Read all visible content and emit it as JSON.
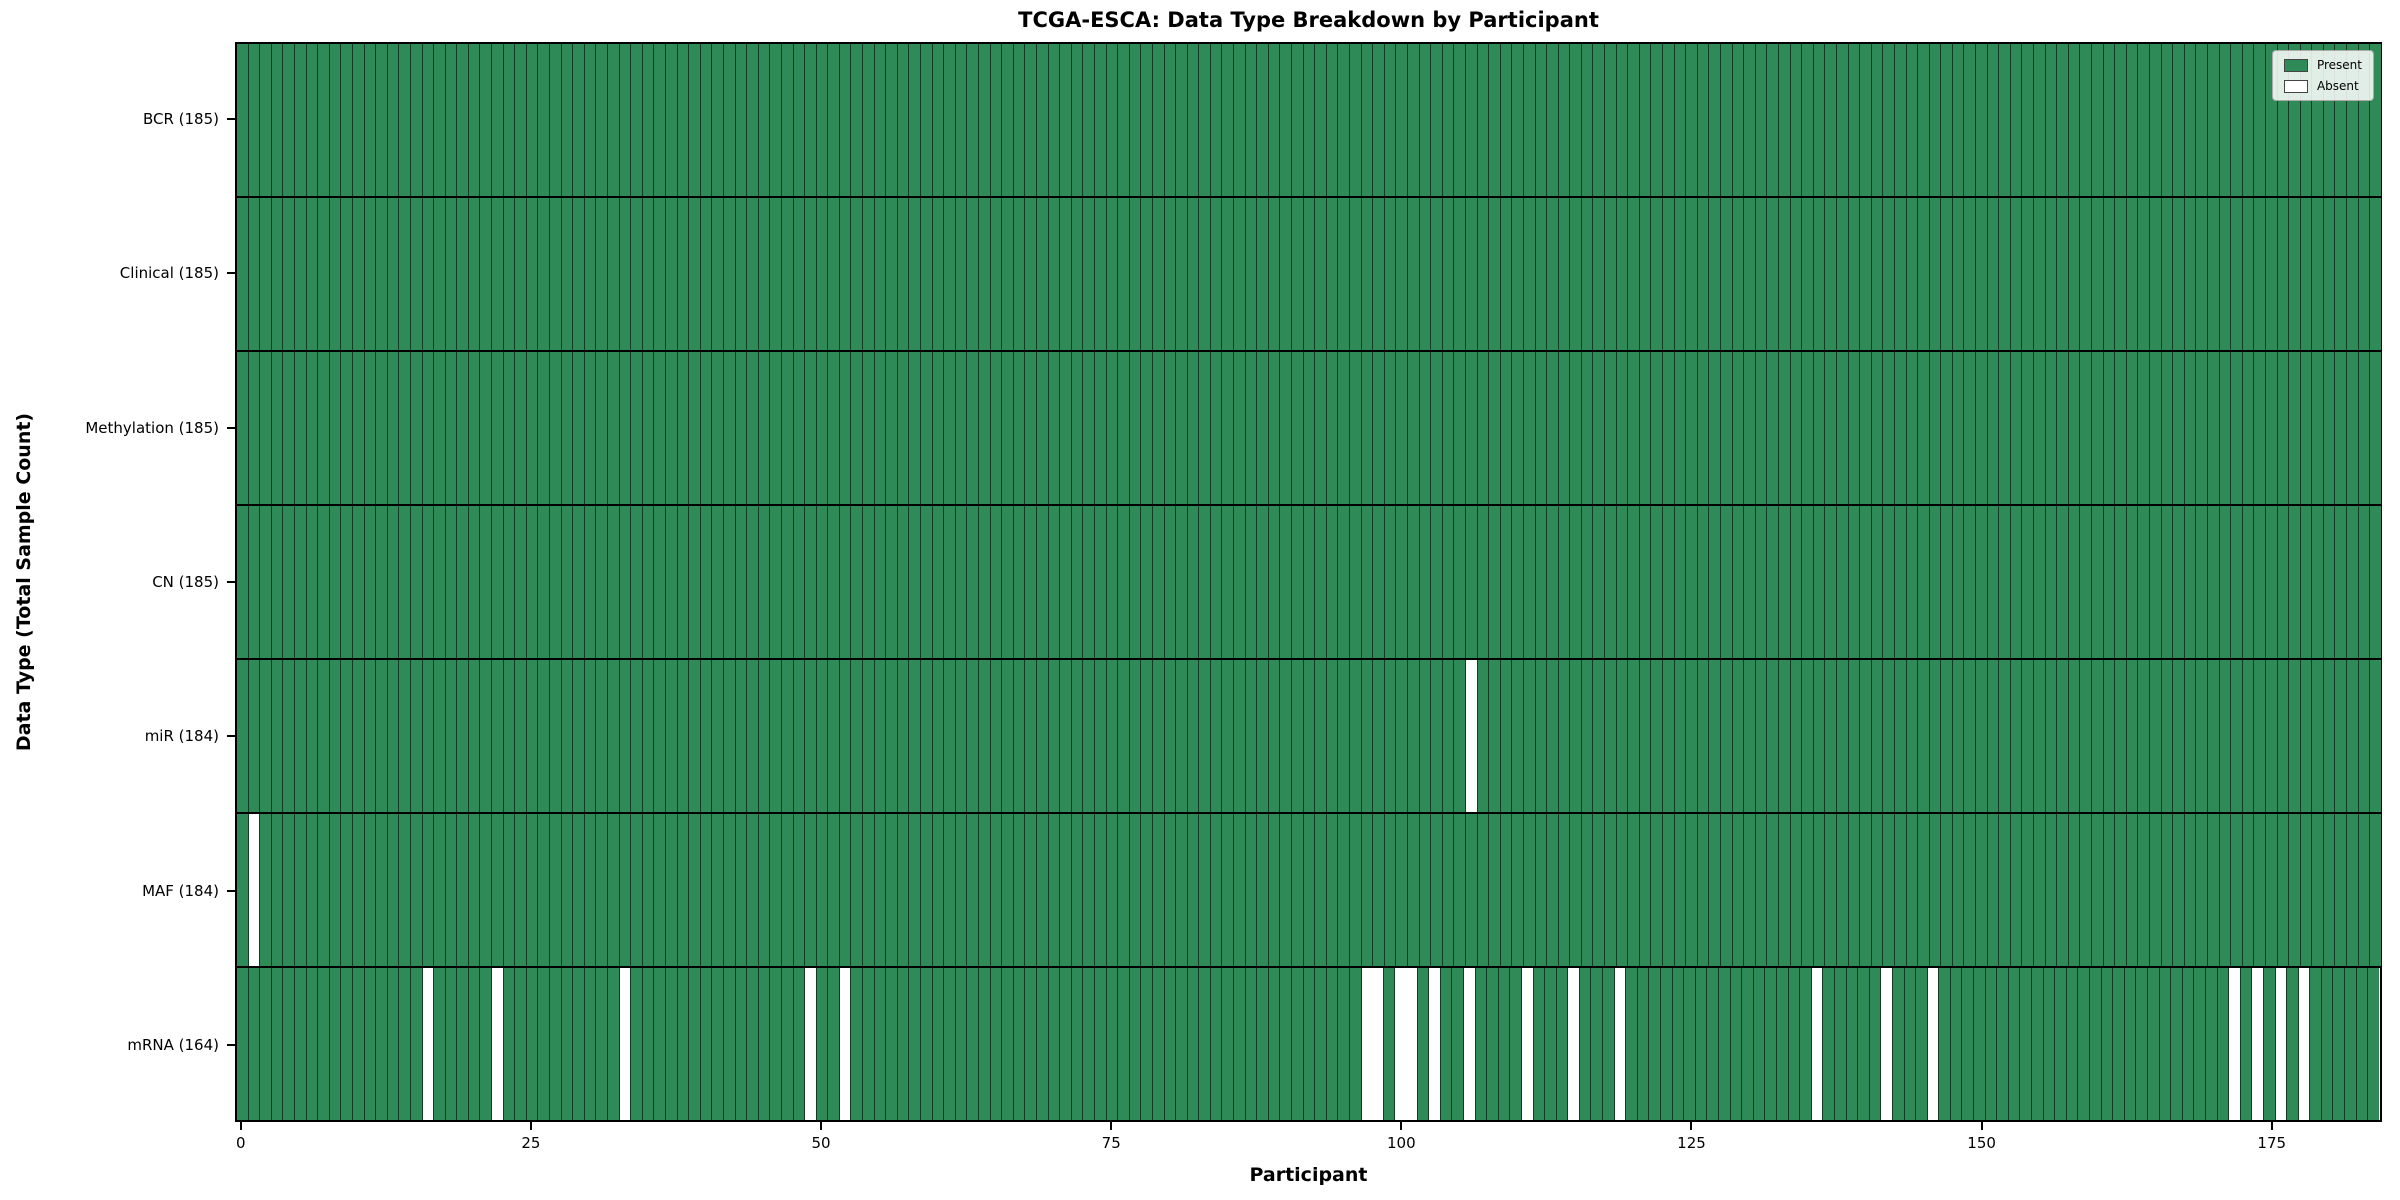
{
  "chart_data": {
    "type": "heatmap",
    "title": "TCGA-ESCA: Data Type Breakdown by Participant",
    "xlabel": "Participant",
    "ylabel": "Data Type (Total Sample Count)",
    "x_ticks": [
      0,
      25,
      50,
      75,
      100,
      125,
      150,
      175
    ],
    "x_range": [
      0,
      184
    ],
    "n_participants": 185,
    "grid": false,
    "legend": {
      "position": "upper right",
      "entries": [
        {
          "label": "Present",
          "color": "#2e8b57"
        },
        {
          "label": "Absent",
          "color": "#ffffff"
        }
      ]
    },
    "colors": {
      "present": "#2e8b57",
      "absent": "#ffffff",
      "cell_edge": "#123a24",
      "row_divider": "#000000",
      "frame": "#000000"
    },
    "rows": [
      {
        "key": "bcr",
        "data_type": "BCR",
        "label": "BCR (185)",
        "present_count": 185,
        "absent_participants": []
      },
      {
        "key": "clinical",
        "data_type": "Clinical",
        "label": "Clinical (185)",
        "present_count": 185,
        "absent_participants": []
      },
      {
        "key": "methylation",
        "data_type": "Methylation",
        "label": "Methylation (185)",
        "present_count": 185,
        "absent_participants": []
      },
      {
        "key": "cn",
        "data_type": "CN",
        "label": "CN (185)",
        "present_count": 185,
        "absent_participants": []
      },
      {
        "key": "mir",
        "data_type": "miR",
        "label": "miR (184)",
        "present_count": 184,
        "absent_participants": [
          106
        ]
      },
      {
        "key": "maf",
        "data_type": "MAF",
        "label": "MAF (184)",
        "present_count": 184,
        "absent_participants": [
          1
        ]
      },
      {
        "key": "mrna",
        "data_type": "mRNA",
        "label": "mRNA (164)",
        "present_count": 164,
        "absent_participants": [
          16,
          22,
          33,
          49,
          52,
          97,
          98,
          100,
          101,
          103,
          106,
          111,
          115,
          119,
          136,
          142,
          146,
          172,
          174,
          176,
          178
        ]
      }
    ]
  }
}
